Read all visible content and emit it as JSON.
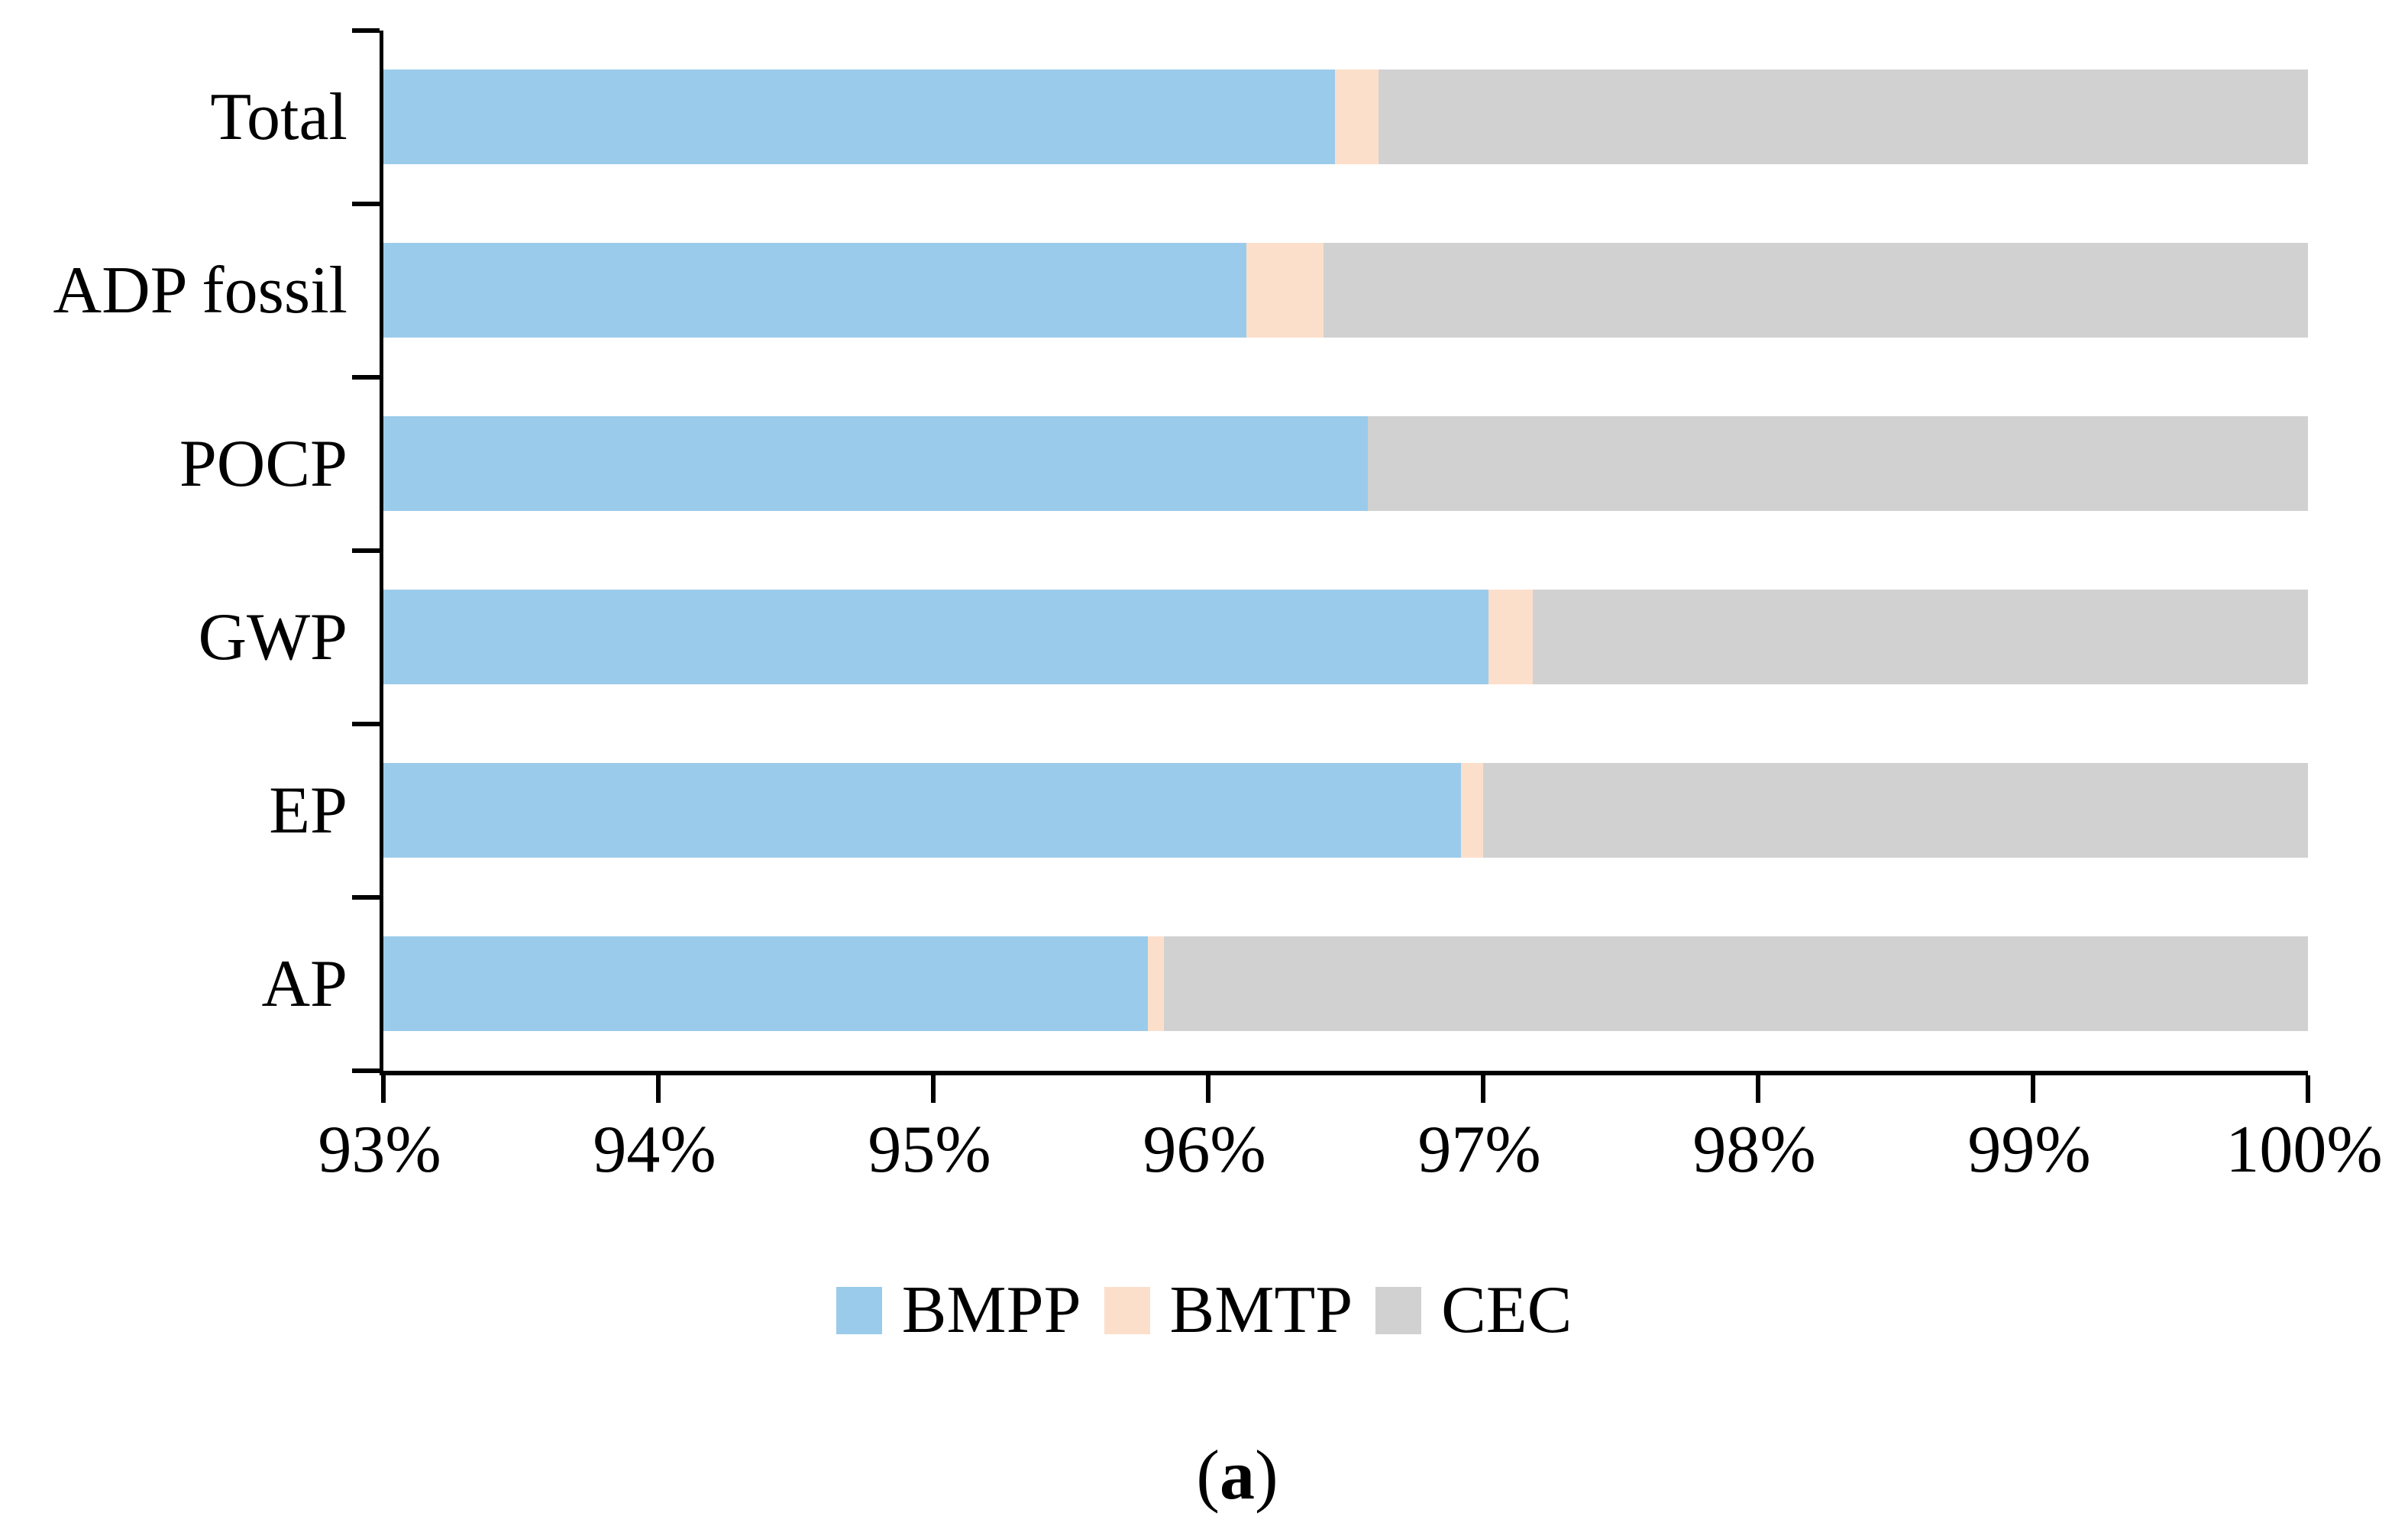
{
  "chart_data": {
    "type": "bar",
    "orientation": "horizontal",
    "stacked": true,
    "title": "",
    "xlabel": "",
    "ylabel": "",
    "categories": [
      "Total",
      "ADP fossil",
      "POCP",
      "GWP",
      "EP",
      "AP"
    ],
    "series": [
      {
        "name": "BMPP",
        "color": "#9BCBEA",
        "values": [
          96.46,
          96.14,
          96.58,
          97.02,
          96.92,
          95.78
        ]
      },
      {
        "name": "BMTP",
        "color": "#FCDFCB",
        "values": [
          0.16,
          0.28,
          0.0,
          0.16,
          0.08,
          0.06
        ]
      },
      {
        "name": "CEC",
        "color": "#D1D1D1",
        "values": [
          3.38,
          3.58,
          3.42,
          2.82,
          3.0,
          4.16
        ]
      }
    ],
    "x_axis": {
      "min": 93,
      "max": 100,
      "tick_step": 1,
      "tick_labels": [
        "93%",
        "94%",
        "95%",
        "96%",
        "97%",
        "98%",
        "99%",
        "100%"
      ],
      "unit": "%",
      "grid": false
    },
    "y_axis": {
      "tick_count": 7
    },
    "legend": {
      "position": "bottom",
      "entries": [
        "BMPP",
        "BMTP",
        "CEC"
      ]
    }
  },
  "caption": {
    "open": "(",
    "letter": "a",
    "close": ")"
  },
  "colors": {
    "axis": "#000000",
    "background": "#FFFFFF",
    "text": "#000000"
  }
}
